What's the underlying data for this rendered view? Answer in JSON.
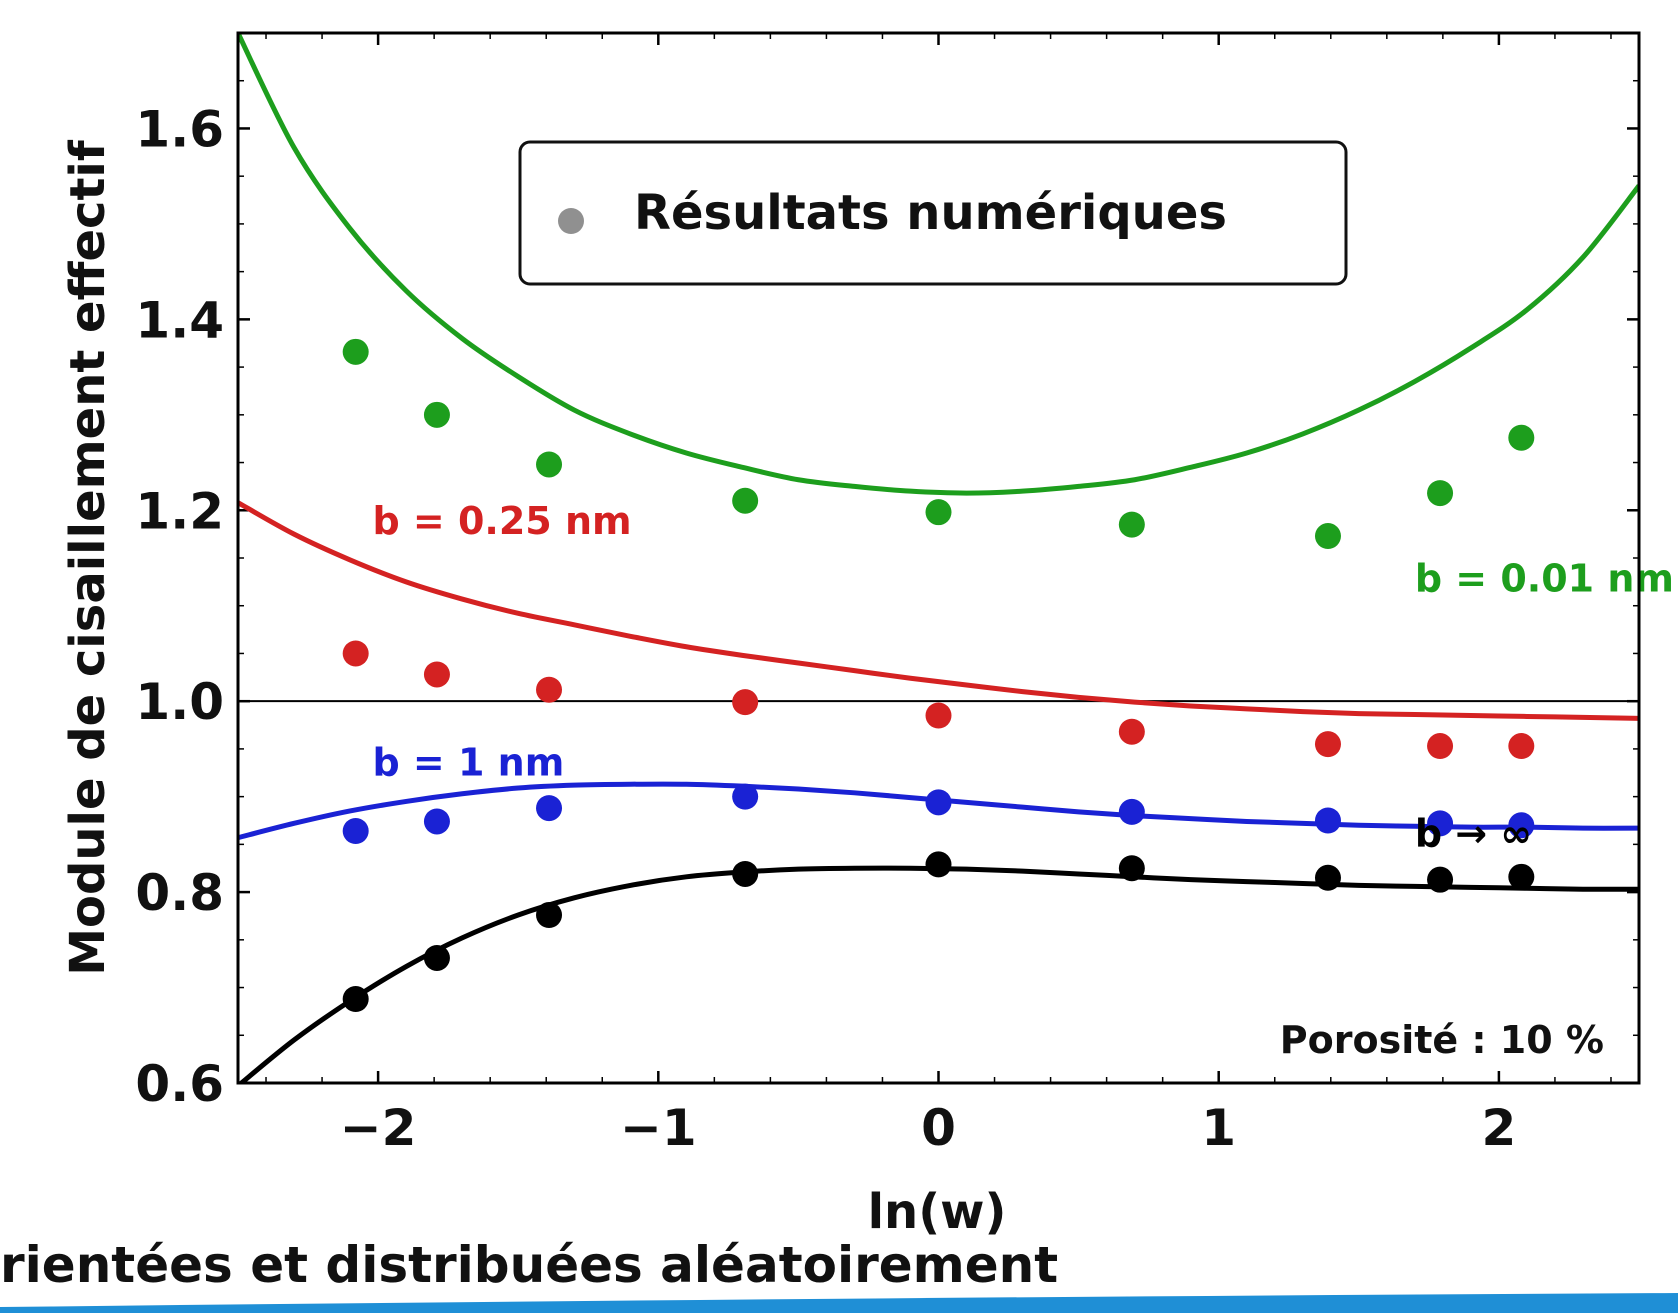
{
  "chart_data": {
    "type": "scatter",
    "xlabel": "ln(w)",
    "ylabel": "Module de cisaillement effectif",
    "xlim": [
      -2.5,
      2.5
    ],
    "ylim": [
      0.6,
      1.7
    ],
    "xticks": [
      -2,
      -1,
      0,
      1,
      2
    ],
    "xtick_labels": [
      "−2",
      "−1",
      "0",
      "1",
      "2"
    ],
    "yticks": [
      0.6,
      0.8,
      1.0,
      1.2,
      1.4,
      1.6
    ],
    "ytick_labels": [
      "0.6",
      "0.8",
      "1.0",
      "1.2",
      "1.4",
      "1.6"
    ],
    "reference_line_y": 1.0,
    "legend": {
      "label": "Résultats numériques",
      "placement": "top-center",
      "marker_color": "#909090"
    },
    "annotation": "Porosité : 10 %",
    "series": [
      {
        "name": "b = 0.01 nm",
        "color": "#1d9e1d",
        "points": {
          "x": [
            -2.08,
            -1.79,
            -1.39,
            -0.69,
            0.0,
            0.69,
            1.39,
            1.79,
            2.08
          ],
          "y": [
            1.366,
            1.3,
            1.248,
            1.21,
            1.198,
            1.185,
            1.173,
            1.218,
            1.276
          ]
        },
        "curve": {
          "x": [
            -2.5,
            -2.3,
            -2.1,
            -1.9,
            -1.7,
            -1.5,
            -1.3,
            -1.1,
            -0.9,
            -0.7,
            -0.5,
            -0.3,
            -0.1,
            0.1,
            0.3,
            0.5,
            0.7,
            0.9,
            1.1,
            1.3,
            1.5,
            1.7,
            1.9,
            2.1,
            2.3,
            2.5
          ],
          "y": [
            1.7,
            1.58,
            1.495,
            1.43,
            1.38,
            1.34,
            1.305,
            1.28,
            1.26,
            1.245,
            1.232,
            1.225,
            1.22,
            1.218,
            1.22,
            1.225,
            1.232,
            1.245,
            1.26,
            1.28,
            1.305,
            1.335,
            1.37,
            1.41,
            1.465,
            1.54
          ]
        },
        "label_pos": [
          1.7,
          1.115
        ]
      },
      {
        "name": "b = 0.25 nm",
        "color": "#d42222",
        "points": {
          "x": [
            -2.08,
            -1.79,
            -1.39,
            -0.69,
            0.0,
            0.69,
            1.39,
            1.79,
            2.08
          ],
          "y": [
            1.05,
            1.028,
            1.012,
            0.999,
            0.985,
            0.968,
            0.955,
            0.953,
            0.953
          ]
        },
        "curve": {
          "x": [
            -2.5,
            -2.3,
            -2.1,
            -1.9,
            -1.7,
            -1.5,
            -1.3,
            -1.1,
            -0.9,
            -0.7,
            -0.5,
            -0.3,
            -0.1,
            0.1,
            0.3,
            0.5,
            0.7,
            0.9,
            1.1,
            1.3,
            1.5,
            1.7,
            1.9,
            2.1,
            2.3,
            2.5
          ],
          "y": [
            1.208,
            1.175,
            1.148,
            1.125,
            1.107,
            1.092,
            1.08,
            1.068,
            1.057,
            1.048,
            1.04,
            1.032,
            1.024,
            1.017,
            1.01,
            1.004,
            0.999,
            0.995,
            0.992,
            0.989,
            0.987,
            0.986,
            0.985,
            0.984,
            0.983,
            0.982
          ]
        },
        "label_pos": [
          -2.02,
          1.175
        ]
      },
      {
        "name": "b = 1 nm",
        "color": "#1a22d4",
        "points": {
          "x": [
            -2.08,
            -1.79,
            -1.39,
            -0.69,
            0.0,
            0.69,
            1.39,
            1.79,
            2.08
          ],
          "y": [
            0.864,
            0.874,
            0.888,
            0.9,
            0.894,
            0.884,
            0.875,
            0.872,
            0.87
          ]
        },
        "curve": {
          "x": [
            -2.5,
            -2.3,
            -2.1,
            -1.9,
            -1.7,
            -1.5,
            -1.3,
            -1.1,
            -0.9,
            -0.7,
            -0.5,
            -0.3,
            -0.1,
            0.1,
            0.3,
            0.5,
            0.7,
            0.9,
            1.1,
            1.3,
            1.5,
            1.7,
            1.9,
            2.1,
            2.3,
            2.5
          ],
          "y": [
            0.857,
            0.872,
            0.885,
            0.895,
            0.903,
            0.909,
            0.912,
            0.913,
            0.913,
            0.911,
            0.908,
            0.904,
            0.899,
            0.894,
            0.889,
            0.884,
            0.88,
            0.877,
            0.874,
            0.872,
            0.87,
            0.869,
            0.868,
            0.868,
            0.867,
            0.867
          ]
        },
        "label_pos": [
          -2.02,
          0.922
        ]
      },
      {
        "name": "b → ∞",
        "color": "#000000",
        "points": {
          "x": [
            -2.08,
            -1.79,
            -1.39,
            -0.69,
            0.0,
            0.69,
            1.39,
            1.79,
            2.08
          ],
          "y": [
            0.688,
            0.731,
            0.776,
            0.819,
            0.829,
            0.825,
            0.815,
            0.813,
            0.816
          ]
        },
        "curve": {
          "x": [
            -2.5,
            -2.3,
            -2.1,
            -1.9,
            -1.7,
            -1.5,
            -1.3,
            -1.1,
            -0.9,
            -0.7,
            -0.5,
            -0.3,
            -0.1,
            0.1,
            0.3,
            0.5,
            0.7,
            0.9,
            1.1,
            1.3,
            1.5,
            1.7,
            1.9,
            2.1,
            2.3,
            2.5
          ],
          "y": [
            0.597,
            0.645,
            0.686,
            0.722,
            0.752,
            0.776,
            0.794,
            0.807,
            0.816,
            0.821,
            0.824,
            0.825,
            0.825,
            0.824,
            0.822,
            0.819,
            0.816,
            0.813,
            0.811,
            0.809,
            0.807,
            0.806,
            0.805,
            0.804,
            0.803,
            0.803
          ]
        },
        "label_pos": [
          1.7,
          0.848
        ]
      }
    ]
  },
  "caption": "rientées et distribuées aléatoirement"
}
